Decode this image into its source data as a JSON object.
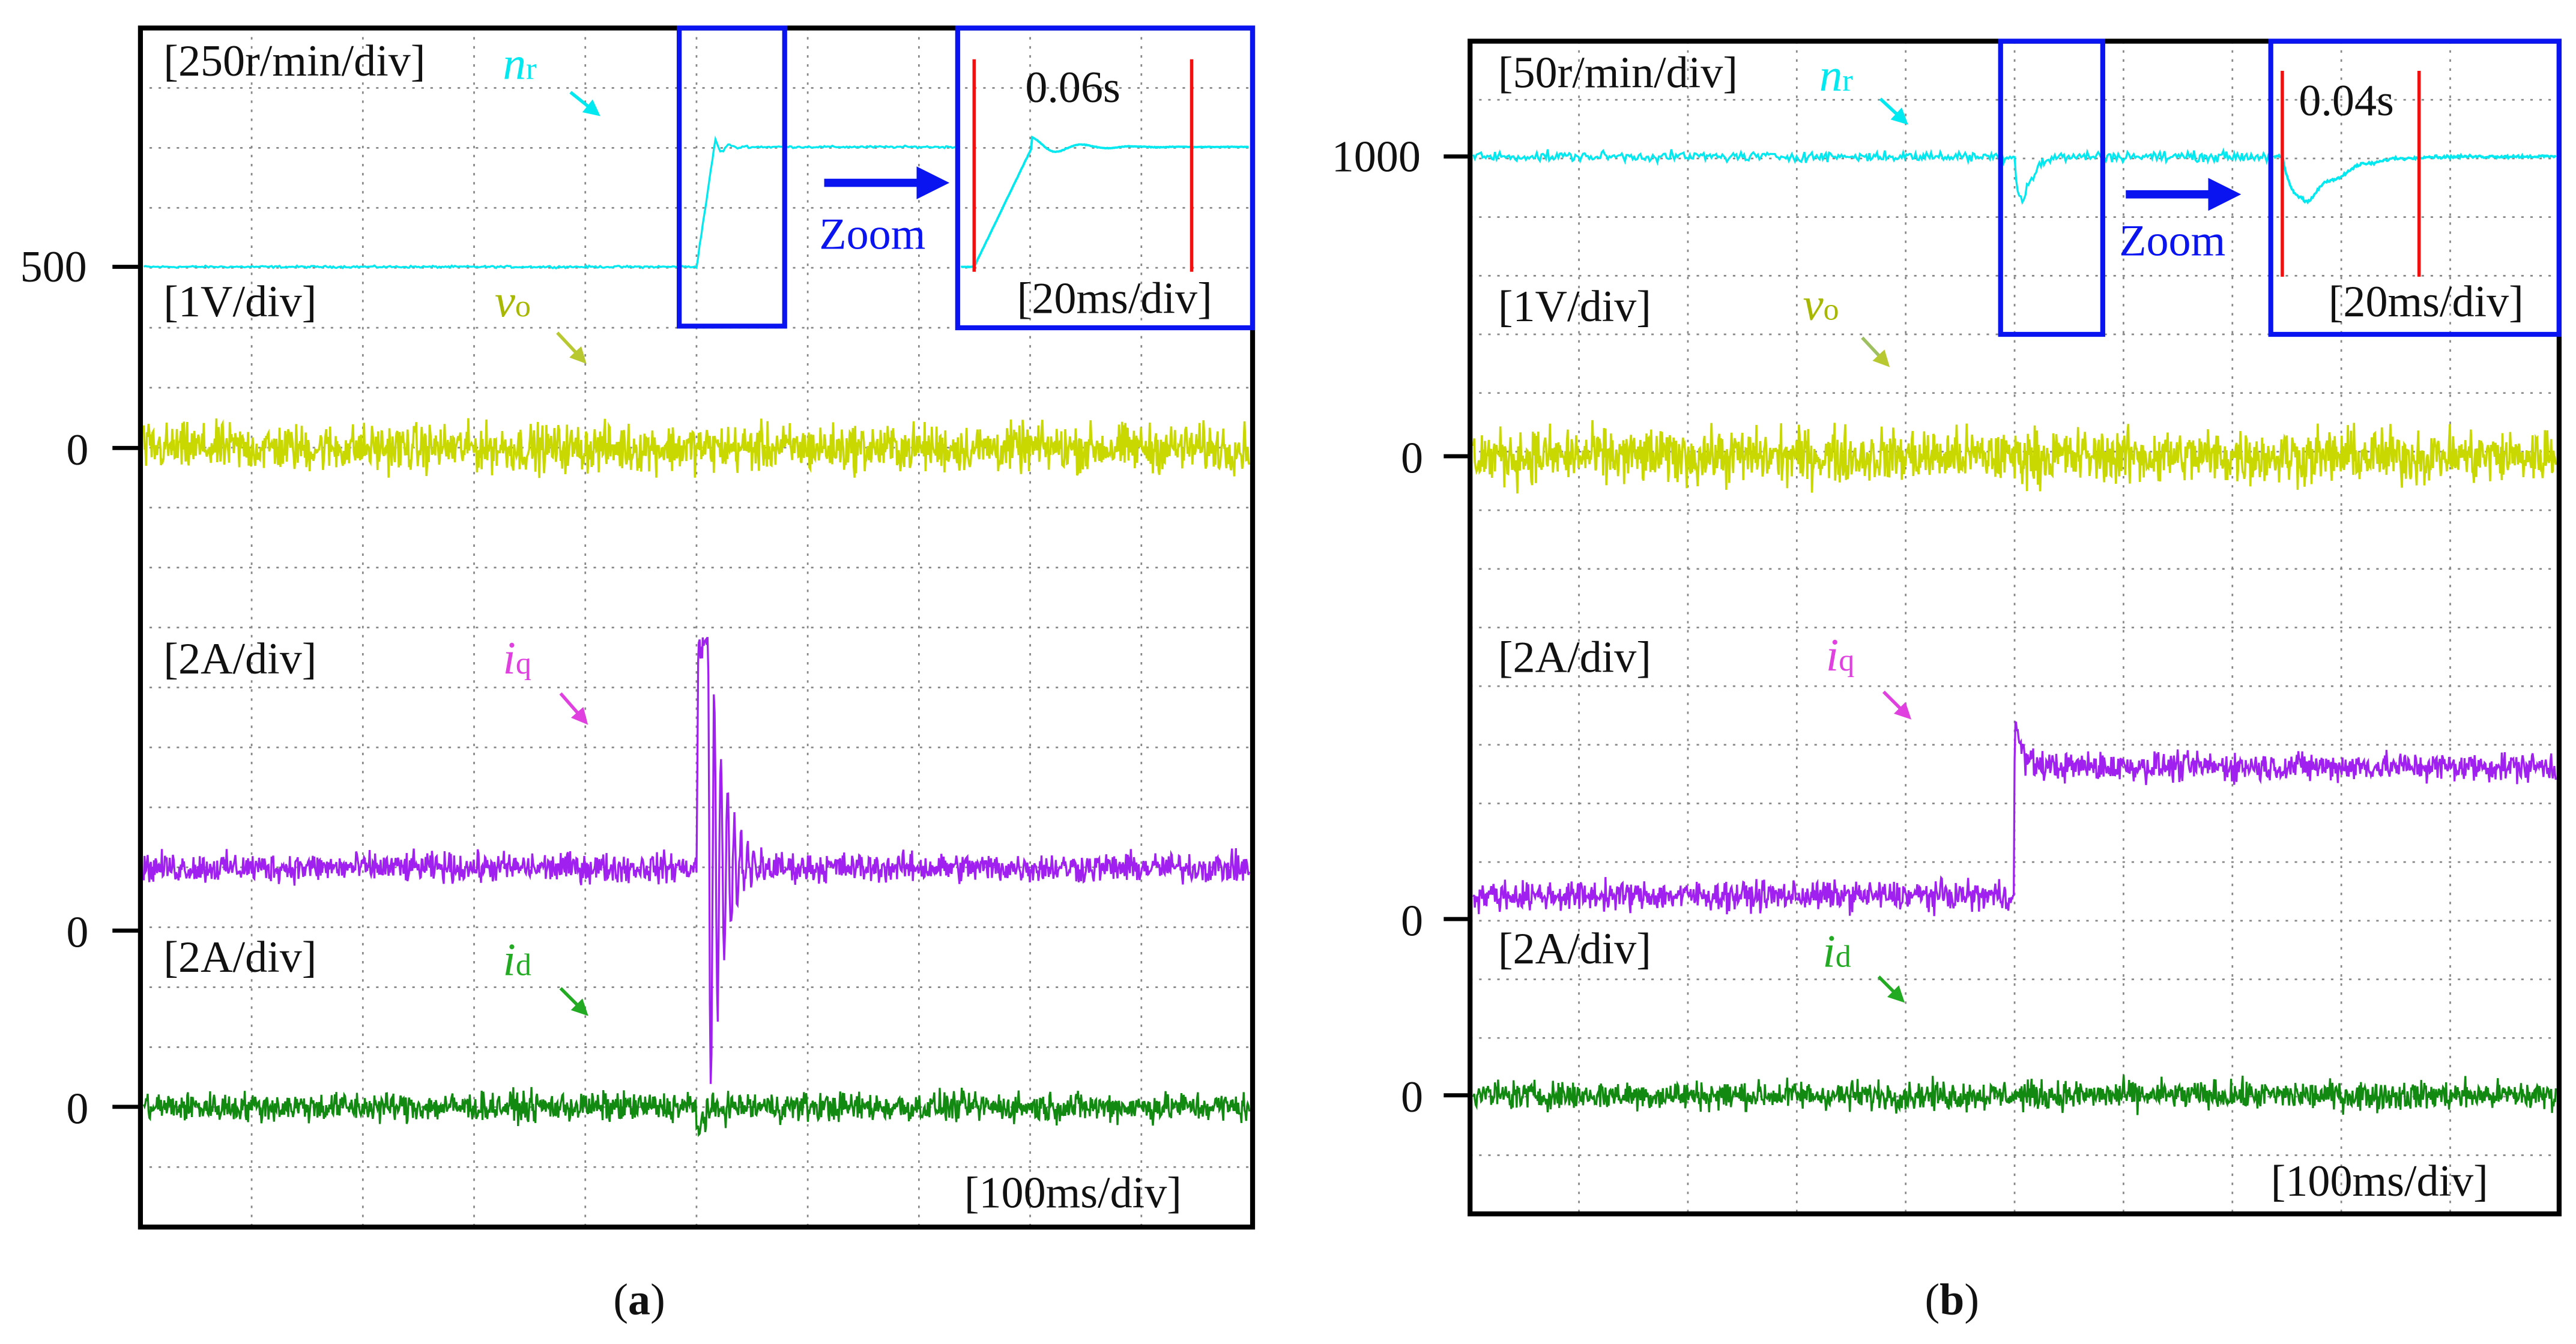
{
  "chart_data": [
    {
      "type": "line",
      "panel_label": "a",
      "x_unit": "ms",
      "x_range": [
        0,
        1000
      ],
      "time_per_div": "[100ms/div]",
      "step_time_ms": 500,
      "grid": true,
      "y_tick_labels": {
        "nr": "500",
        "vo": "0",
        "iq": "0",
        "id": "0"
      },
      "zoom": {
        "label": "Zoom",
        "time_per_div": "[20ms/div]",
        "interval": "0.06s"
      },
      "series": [
        {
          "key": "nr",
          "symbol": "n",
          "sub": "r",
          "scale": "[250r/min/div]",
          "unit": "r/min",
          "per_div": 250,
          "before": 500,
          "after": 1000,
          "overshoot": 40,
          "noise": 3,
          "color": "#00e8f0"
        },
        {
          "key": "vo",
          "symbol": "v",
          "sub": "o",
          "scale": "[1V/div]",
          "unit": "V",
          "per_div": 1,
          "before": 0,
          "after": 0,
          "noise": 0.28,
          "color": "#c8d800"
        },
        {
          "key": "iq",
          "symbol": "i",
          "sub": "q",
          "scale": "[2A/div]",
          "unit": "A",
          "per_div": 2,
          "before": 2.1,
          "after": 2.1,
          "peak": 11.5,
          "noise": 0.35,
          "color": "#a020f0"
        },
        {
          "key": "id",
          "symbol": "i",
          "sub": "d",
          "scale": "[2A/div]",
          "unit": "A",
          "per_div": 2,
          "before": 0,
          "after": 0,
          "noise": 0.35,
          "color": "#128a12"
        }
      ]
    },
    {
      "type": "line",
      "panel_label": "b",
      "x_unit": "ms",
      "x_range": [
        0,
        1000
      ],
      "time_per_div": "[100ms/div]",
      "step_time_ms": 500,
      "grid": true,
      "y_tick_labels": {
        "nr": "1000",
        "vo": "0",
        "iq": "0",
        "id": "0"
      },
      "zoom": {
        "label": "Zoom",
        "time_per_div": "[20ms/div]",
        "interval": "0.04s"
      },
      "series": [
        {
          "key": "nr",
          "symbol": "n",
          "sub": "r",
          "scale": "[50r/min/div]",
          "unit": "r/min",
          "per_div": 50,
          "before": 1000,
          "after": 1000,
          "dip": -35,
          "noise": 3,
          "color": "#00e8f0"
        },
        {
          "key": "vo",
          "symbol": "v",
          "sub": "o",
          "scale": "[1V/div]",
          "unit": "V",
          "per_div": 1,
          "before": 0,
          "after": 0,
          "noise": 0.33,
          "color": "#c8d800"
        },
        {
          "key": "iq",
          "symbol": "i",
          "sub": "q",
          "scale": "[2A/div]",
          "unit": "A",
          "per_div": 2,
          "before": 0.8,
          "after": 5.2,
          "peak": 7.0,
          "noise": 0.35,
          "color": "#a020f0"
        },
        {
          "key": "id",
          "symbol": "i",
          "sub": "d",
          "scale": "[2A/div]",
          "unit": "A",
          "per_div": 2,
          "before": 0,
          "after": 0,
          "noise": 0.35,
          "color": "#128a12"
        }
      ]
    }
  ]
}
